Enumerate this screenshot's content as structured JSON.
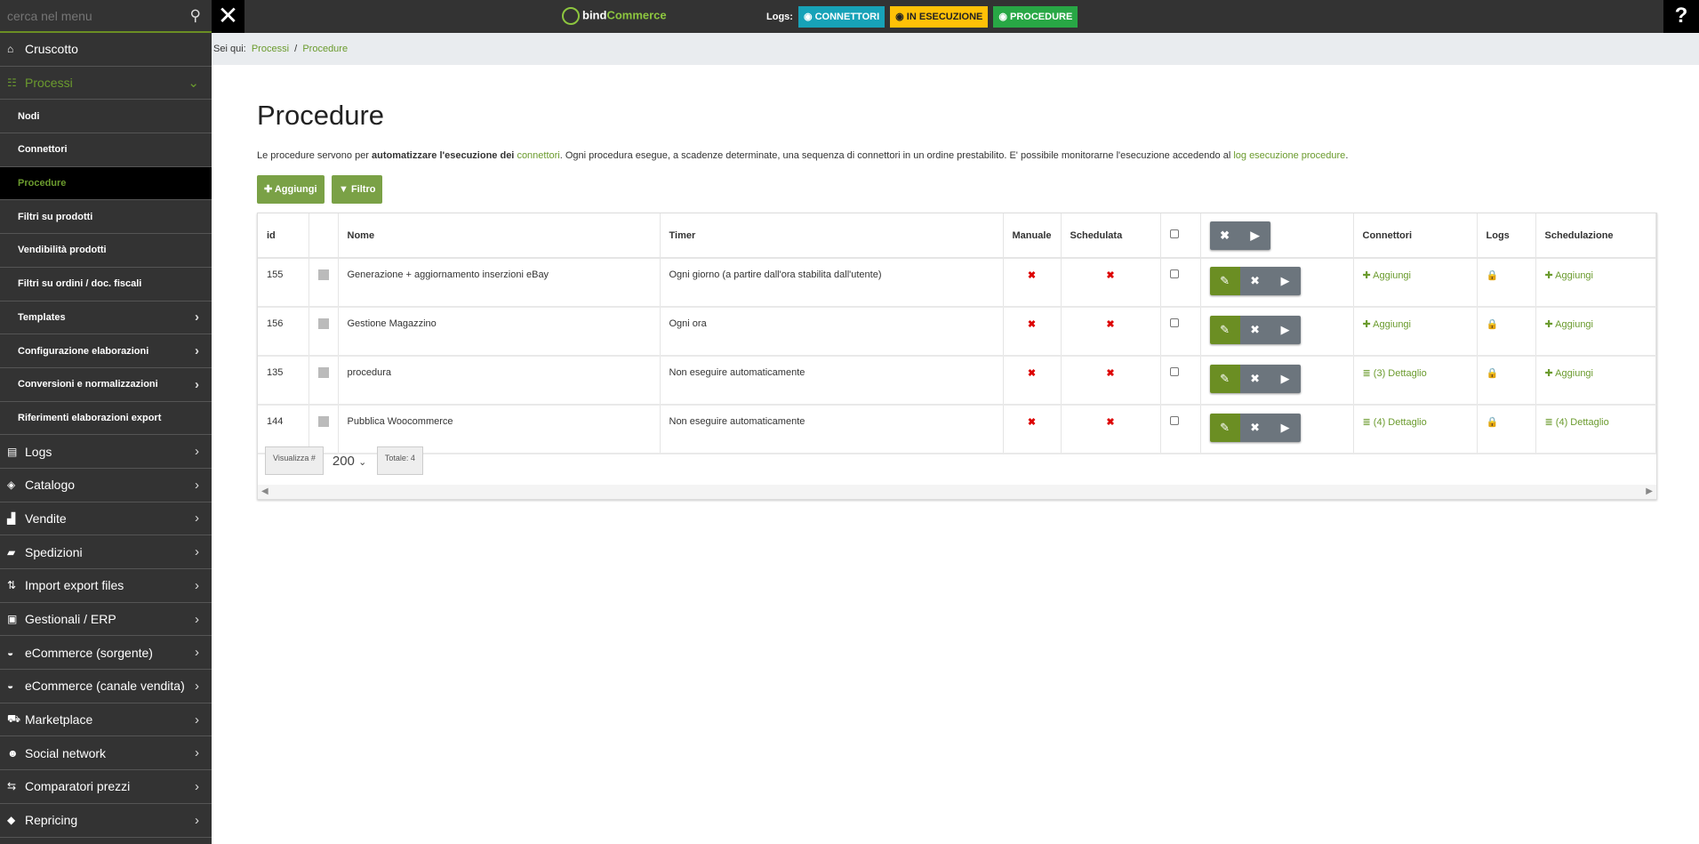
{
  "topbar": {
    "search_placeholder": "cerca nel menu",
    "logo_left": "bind",
    "logo_right": "Commerce",
    "logs_label": "Logs:",
    "log_buttons": [
      {
        "label": "CONNETTORI",
        "color": "#17a2b8",
        "text": "#fff",
        "icon": "arrow-circle-icon"
      },
      {
        "label": "IN ESECUZIONE",
        "color": "#ffc107",
        "text": "#222",
        "icon": "play-circle-icon"
      },
      {
        "label": "PROCEDURE",
        "color": "#28a745",
        "text": "#fff",
        "icon": "calendar-icon"
      }
    ],
    "help": "?"
  },
  "sidebar": {
    "items": [
      {
        "label": "Cruscotto",
        "icon": "home-icon",
        "glyph": "⌂",
        "level": "top"
      },
      {
        "label": "Processi",
        "icon": "processes-icon",
        "glyph": "☷",
        "level": "top",
        "open": true,
        "chevron": "⌄"
      },
      {
        "label": "Nodi",
        "level": "sub"
      },
      {
        "label": "Connettori",
        "level": "sub"
      },
      {
        "label": "Procedure",
        "level": "sub",
        "active": true
      },
      {
        "label": "Filtri su prodotti",
        "level": "sub"
      },
      {
        "label": "Vendibilità prodotti",
        "level": "sub"
      },
      {
        "label": "Filtri su ordini / doc. fiscali",
        "level": "sub"
      },
      {
        "label": "Templates",
        "level": "sub",
        "chevron": "›"
      },
      {
        "label": "Configurazione elaborazioni",
        "level": "sub",
        "chevron": "›"
      },
      {
        "label": "Conversioni e normalizzazioni",
        "level": "sub",
        "chevron": "›"
      },
      {
        "label": "Riferimenti elaborazioni export",
        "level": "sub"
      },
      {
        "label": "Logs",
        "icon": "logs-icon",
        "glyph": "▤",
        "level": "top",
        "chevron": "›"
      },
      {
        "label": "Catalogo",
        "icon": "cube-icon",
        "glyph": "◈",
        "level": "top",
        "chevron": "›"
      },
      {
        "label": "Vendite",
        "icon": "chart-icon",
        "glyph": "▟",
        "level": "top",
        "chevron": "›"
      },
      {
        "label": "Spedizioni",
        "icon": "truck-icon",
        "glyph": "▰",
        "level": "top",
        "chevron": "›"
      },
      {
        "label": "Import export files",
        "icon": "transfer-icon",
        "glyph": "⇅",
        "level": "top",
        "chevron": "›"
      },
      {
        "label": "Gestionali / ERP",
        "icon": "briefcase-icon",
        "glyph": "▣",
        "level": "top",
        "chevron": "›"
      },
      {
        "label": "eCommerce (sorgente)",
        "icon": "basket-icon",
        "glyph": "◒",
        "level": "top",
        "chevron": "›"
      },
      {
        "label": "eCommerce (canale vendita)",
        "icon": "basket-icon",
        "glyph": "◒",
        "level": "top",
        "chevron": "›"
      },
      {
        "label": "Marketplace",
        "icon": "cart-icon",
        "glyph": "⛟",
        "level": "top",
        "chevron": "›"
      },
      {
        "label": "Social network",
        "icon": "users-icon",
        "glyph": "☻",
        "level": "top",
        "chevron": "›"
      },
      {
        "label": "Comparatori prezzi",
        "icon": "compare-icon",
        "glyph": "⇆",
        "level": "top",
        "chevron": "›"
      },
      {
        "label": "Repricing",
        "icon": "tag-icon",
        "glyph": "◆",
        "level": "top",
        "chevron": "›"
      }
    ]
  },
  "breadcrumb": {
    "prefix": "Sei qui:",
    "items": [
      "Processi",
      "Procedure"
    ],
    "sep": "/"
  },
  "page": {
    "title": "Procedure",
    "desc": {
      "p1": "Le procedure servono per ",
      "b1": "automatizzare l'esecuzione dei",
      "link1": "connettori",
      "p2": ". Ogni procedura esegue, a scadenze determinate, una sequenza di connettori in un ordine prestabilito. E' possibile monitorarne l'esecuzione accedendo al ",
      "link2": "log esecuzione procedure",
      "p3": "."
    },
    "add_button": "✚ Aggiungi",
    "filter_button": "▼ Filtro"
  },
  "table": {
    "headers": [
      "id",
      "",
      "Nome",
      "Timer",
      "Manuale",
      "Schedulata",
      "",
      "",
      "Connettori",
      "Logs",
      "Schedulazione"
    ],
    "rows": [
      {
        "id": "155",
        "nome": "Generazione + aggiornamento inserzioni eBay",
        "timer": "Ogni giorno (a partire dall'ora stabilita dall'utente)",
        "manuale": "✖",
        "schedulata": "✖",
        "connettori": "✚ Aggiungi",
        "schedulazione": "✚ Aggiungi"
      },
      {
        "id": "156",
        "nome": "Gestione Magazzino",
        "timer": "Ogni ora",
        "manuale": "✖",
        "schedulata": "✖",
        "connettori": "✚ Aggiungi",
        "schedulazione": "✚ Aggiungi"
      },
      {
        "id": "135",
        "nome": "procedura",
        "timer": "Non eseguire automaticamente",
        "manuale": "✖",
        "schedulata": "✖",
        "connettori": "≣ (3) Dettaglio",
        "schedulazione": "✚ Aggiungi"
      },
      {
        "id": "144",
        "nome": "Pubblica Woocommerce",
        "timer": "Non eseguire automaticamente",
        "manuale": "✖",
        "schedulata": "✖",
        "connettori": "≣ (4) Dettaglio",
        "schedulazione": "≣ (4) Dettaglio"
      }
    ],
    "pager": {
      "show_label": "Visualizza #",
      "page_size": "200",
      "total": "Totale: 4"
    }
  }
}
